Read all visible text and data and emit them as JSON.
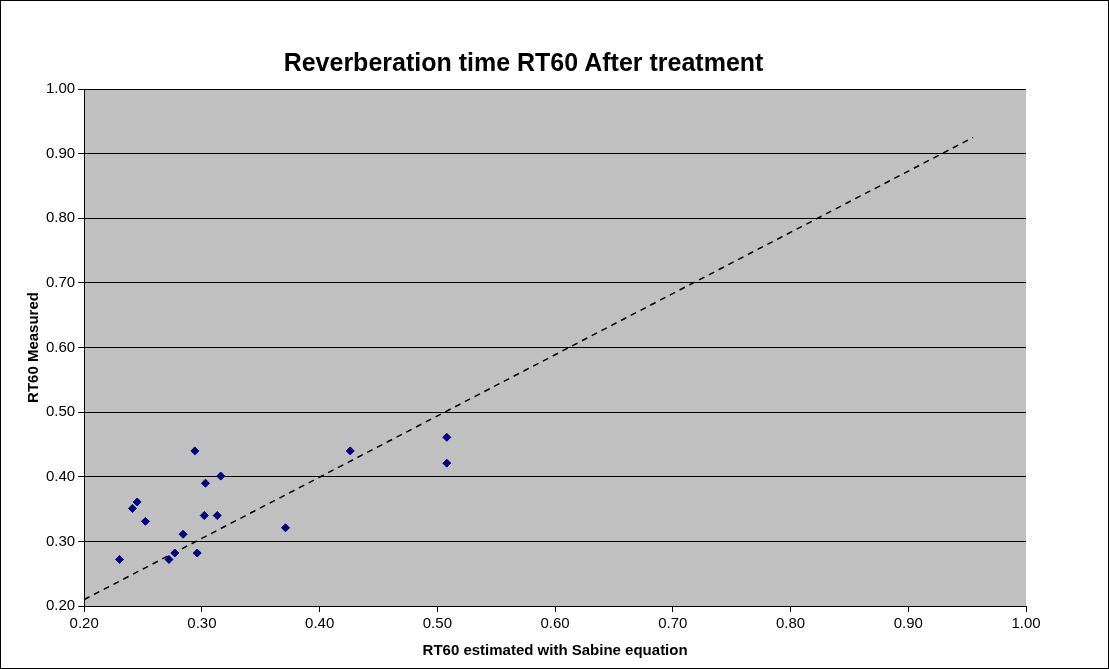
{
  "chart_data": {
    "type": "scatter",
    "title": "Reverberation time RT60 After treatment",
    "xlabel": "RT60 estimated with Sabine equation",
    "ylabel": "RT60 Measured",
    "xlim": [
      0.2,
      1.0
    ],
    "ylim": [
      0.2,
      1.0
    ],
    "xticks": [
      {
        "value": 0.2,
        "label": "0.20"
      },
      {
        "value": 0.3,
        "label": "0.30"
      },
      {
        "value": 0.4,
        "label": "0.40"
      },
      {
        "value": 0.5,
        "label": "0.50"
      },
      {
        "value": 0.6,
        "label": "0.60"
      },
      {
        "value": 0.7,
        "label": "0.70"
      },
      {
        "value": 0.8,
        "label": "0.80"
      },
      {
        "value": 0.9,
        "label": "0.90"
      },
      {
        "value": 1.0,
        "label": "1.00"
      }
    ],
    "yticks": [
      {
        "value": 0.2,
        "label": "0.20"
      },
      {
        "value": 0.3,
        "label": "0.30"
      },
      {
        "value": 0.4,
        "label": "0.40"
      },
      {
        "value": 0.5,
        "label": "0.50"
      },
      {
        "value": 0.6,
        "label": "0.60"
      },
      {
        "value": 0.7,
        "label": "0.70"
      },
      {
        "value": 0.8,
        "label": "0.80"
      },
      {
        "value": 0.9,
        "label": "0.90"
      },
      {
        "value": 1.0,
        "label": "1.00"
      }
    ],
    "grid": "y",
    "marker": "diamond",
    "series": [
      {
        "type": "scatter",
        "color": "#000080",
        "x": [
          0.23,
          0.241,
          0.245,
          0.252,
          0.294,
          0.316,
          0.303,
          0.302,
          0.313,
          0.284,
          0.277,
          0.272,
          0.296,
          0.371,
          0.426,
          0.508,
          0.508
        ],
        "values": [
          0.272,
          0.351,
          0.361,
          0.331,
          0.44,
          0.401,
          0.39,
          0.34,
          0.34,
          0.311,
          0.282,
          0.272,
          0.282,
          0.321,
          0.44,
          0.461,
          0.421
        ]
      },
      {
        "type": "line",
        "color": "#000000",
        "line_style": "dashed",
        "marker": "none",
        "x": [
          0.2,
          0.955
        ],
        "values": [
          0.21,
          0.925
        ]
      }
    ]
  }
}
